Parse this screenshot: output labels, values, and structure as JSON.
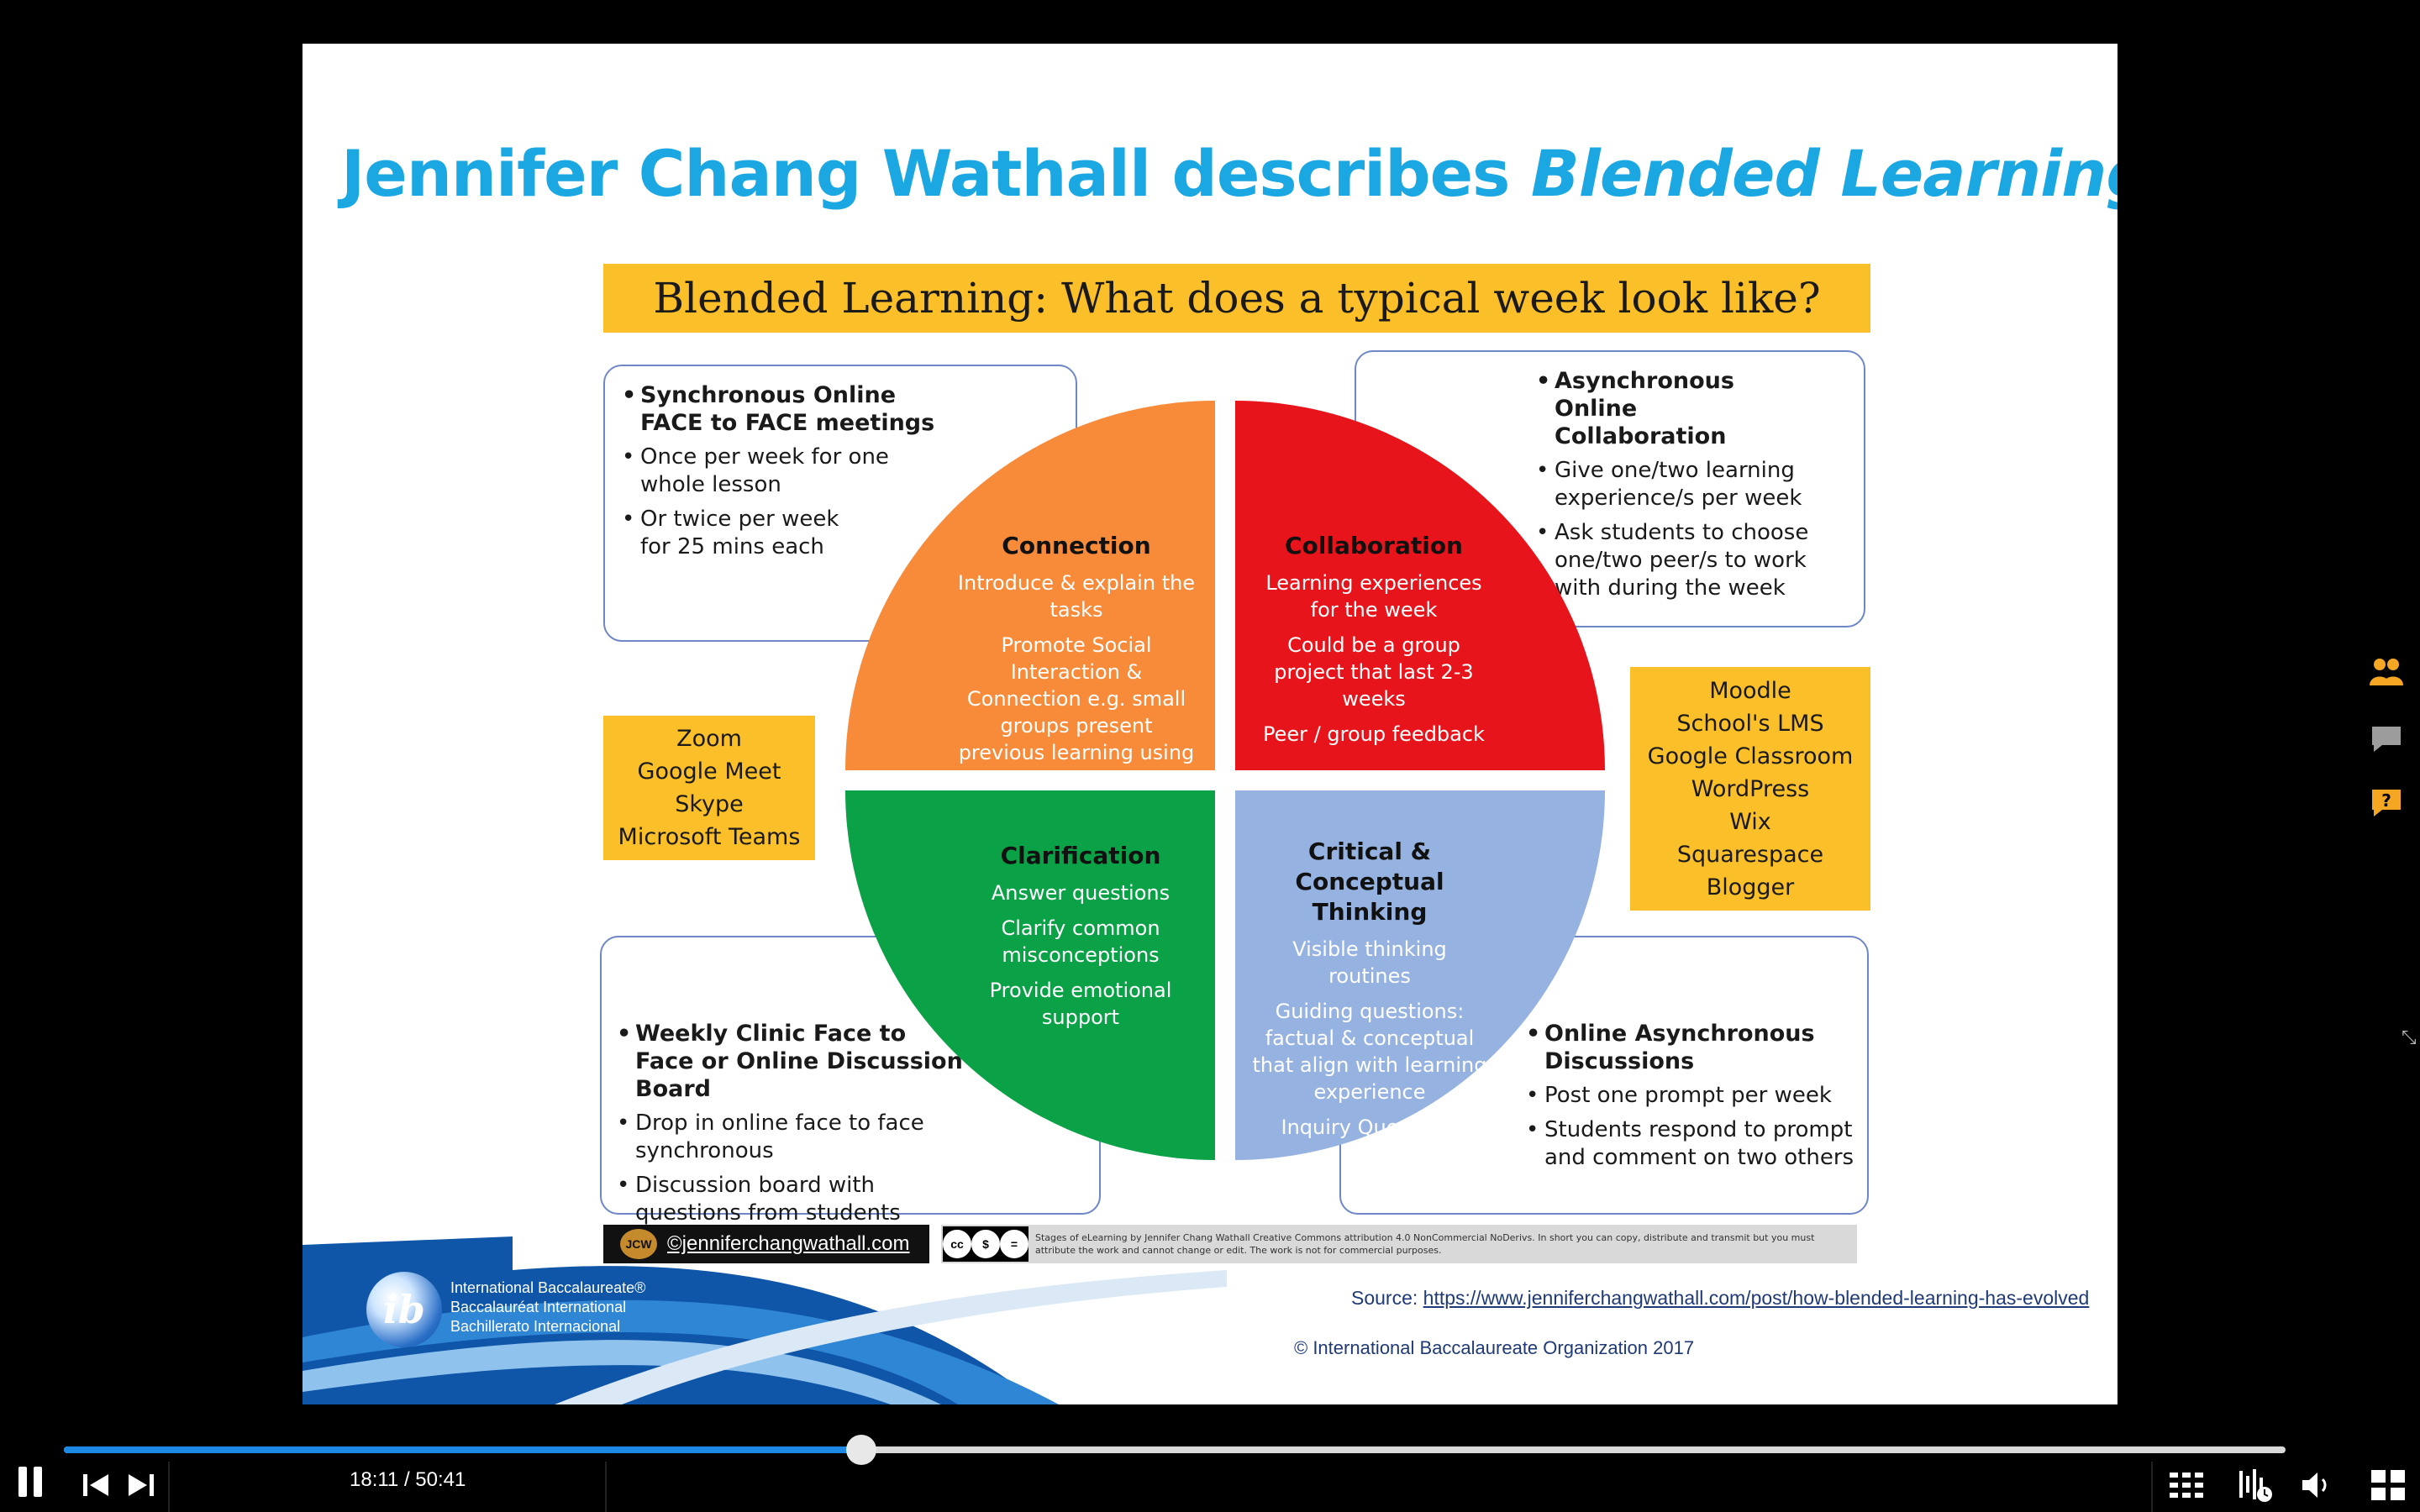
{
  "slide": {
    "title_plain": "Jennifer Chang Wathall describes ",
    "title_italic": "Blended Learning",
    "banner": "Blended Learning: What does a typical week look like?",
    "box_tl": {
      "heading": "Synchronous Online FACE to FACE meetings",
      "items": [
        "Once per week for one whole lesson",
        "Or twice per week for 25 mins each"
      ]
    },
    "box_tr": {
      "heading": "Asynchronous Online Collaboration",
      "items": [
        "Give one/two learning experience/s per week",
        "Ask students to choose one/two peer/s to work with during the week"
      ]
    },
    "box_bl": {
      "heading": "Weekly Clinic Face to Face or Online Discussion Board",
      "items": [
        "Drop in online face to face synchronous",
        "Discussion board with questions from students"
      ]
    },
    "box_br": {
      "heading": "Online Asynchronous Discussions",
      "items": [
        "Post one prompt per week",
        "Students respond to prompt and comment on two others"
      ]
    },
    "tools_left": [
      "Zoom",
      "Google Meet",
      "Skype",
      "Microsoft Teams"
    ],
    "tools_right": [
      "Moodle",
      "School's LMS",
      "Google Classroom",
      "WordPress",
      "Wix",
      "Squarespace",
      "Blogger"
    ],
    "quadrants": {
      "connection": {
        "title": "Connection",
        "lines": [
          "Introduce & explain the tasks",
          "Promote Social Interaction & Connection e.g. small groups present previous learning using breakout rooms"
        ],
        "color": "#f78b3a"
      },
      "collaboration": {
        "title": "Collaboration",
        "lines": [
          "Learning experiences for the week",
          "Could be a group project that last 2-3 weeks",
          "Peer / group feedback"
        ],
        "color": "#e8141b"
      },
      "clarification": {
        "title": "Clarification",
        "lines": [
          "Answer questions",
          "Clarify common misconceptions",
          "Provide emotional support"
        ],
        "color": "#0aa147"
      },
      "critical": {
        "title": "Critical & Conceptual Thinking",
        "lines": [
          "Visible thinking routines",
          "Guiding questions: factual & conceptual that align with learning experience",
          "Inquiry Questions"
        ],
        "color": "#96b2e0"
      }
    },
    "footer": {
      "website": "©jenniferchangwathall.com",
      "logo_initials": "JCW",
      "cc_badge": [
        "cc",
        "$",
        "="
      ],
      "cc_labels": "BY  NC  ND",
      "cc_text": "Stages of eLearning by Jennifer Chang Wathall Creative Commons attribution 4.0 NonCommercial NoDerivs. In short you can copy, distribute and transmit but you must attribute the work and cannot change or edit. The work is not for commercial purposes.",
      "ib_letter": "ib",
      "ib_lines": [
        "International Baccalaureate®",
        "Baccalauréat International",
        "Bachillerato Internacional"
      ],
      "source_label": "Source: ",
      "source_url": "https://www.jenniferchangwathall.com/post/how-blended-learning-has-evolved",
      "copyright": "© International Baccalaureate Organization 2017"
    }
  },
  "player": {
    "time": "18:11 / 50:41",
    "progress": 0.359,
    "icons": [
      "pause-icon",
      "previous-icon",
      "next-icon",
      "chapters-icon",
      "speed-icon",
      "volume-icon",
      "fullscreen-icon"
    ],
    "side_icons": [
      "participants-icon",
      "chat-icon",
      "question-icon"
    ],
    "accent": "#1e88e5"
  }
}
